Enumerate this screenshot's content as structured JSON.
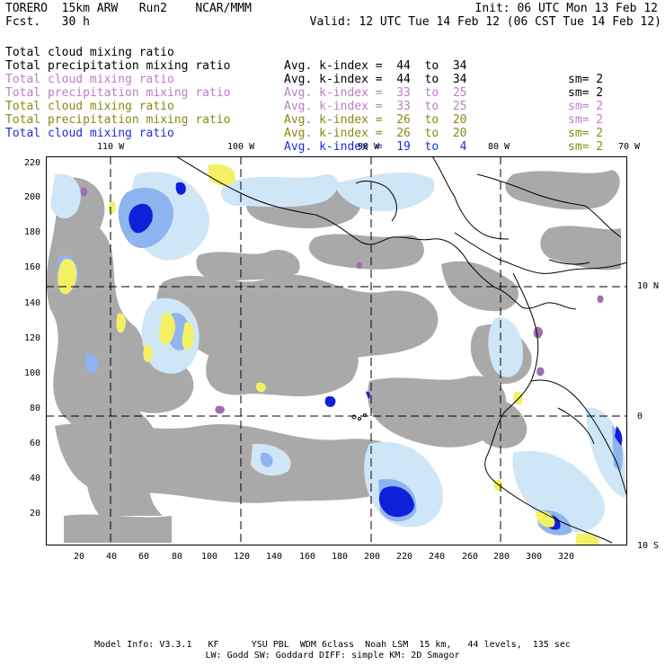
{
  "header": {
    "model": "TORERO  15km ARW   Run2    NCAR/MMM",
    "init": "Init: 06 UTC Mon 13 Feb 12",
    "fcst": "Fcst.   30 h",
    "valid": "Valid: 12 UTC Tue 14 Feb 12 (06 CST Tue 14 Feb 12)"
  },
  "legend": [
    {
      "field": "Total cloud mixing ratio",
      "avg": "Avg. k-index =  44  to  34",
      "sm": "sm= 2",
      "color": "#000000"
    },
    {
      "field": "Total precipitation mixing ratio",
      "avg": "Avg. k-index =  44  to  34",
      "sm": "sm= 2",
      "color": "#000000"
    },
    {
      "field": "Total cloud mixing ratio",
      "avg": "Avg. k-index =  33  to  25",
      "sm": "sm= 2",
      "color": "#b97fc4"
    },
    {
      "field": "Total precipitation mixing ratio",
      "avg": "Avg. k-index =  33  to  25",
      "sm": "sm= 2",
      "color": "#b97fc4"
    },
    {
      "field": "Total cloud mixing ratio",
      "avg": "Avg. k-index =  26  to  20",
      "sm": "sm= 2",
      "color": "#8a8a12"
    },
    {
      "field": "Total precipitation mixing ratio",
      "avg": "Avg. k-index =  26  to  20",
      "sm": "sm= 2",
      "color": "#8a8a12"
    },
    {
      "field": "Total cloud mixing ratio",
      "avg": "Avg. k-index =  19  to   4",
      "sm": "",
      "color": "#1a2ee0"
    }
  ],
  "map": {
    "x_ticks": [
      "20",
      "40",
      "60",
      "80",
      "100",
      "120",
      "140",
      "160",
      "180",
      "200",
      "220",
      "240",
      "260",
      "280",
      "300",
      "320"
    ],
    "y_ticks": [
      "220",
      "200",
      "180",
      "160",
      "140",
      "120",
      "100",
      "80",
      "60",
      "40",
      "20"
    ],
    "lon_labels": [
      "110 W",
      "100 W",
      "90 W",
      "80 W",
      "70 W"
    ],
    "lat_labels": [
      "10 N",
      "0",
      "10 S"
    ],
    "colors": {
      "gray_cloud": "#a9a9a9",
      "light_blue": "#cfe6f7",
      "mid_blue": "#8fb4f0",
      "deep_blue": "#1020d8",
      "yellow": "#f4f065",
      "purple": "#9c6fb0",
      "coast": "#000000"
    }
  },
  "footer": {
    "line1": "Model Info: V3.3.1   KF      YSU PBL  WDM 6class  Noah LSM  15 km,   44 levels,  135 sec",
    "line2": "LW: Godd SW: Goddard DIFF: simple KM: 2D Smagor"
  }
}
